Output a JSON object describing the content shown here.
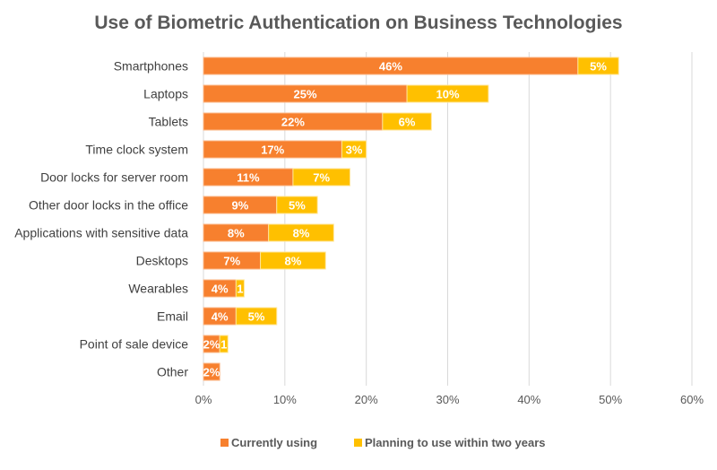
{
  "chart_data": {
    "type": "bar",
    "orientation": "horizontal",
    "stacked": true,
    "title": "Use of Biometric Authentication on Business Technologies",
    "categories": [
      "Smartphones",
      "Laptops",
      "Tablets",
      "Time clock system",
      "Door locks for server room",
      "Other door locks in the office",
      "Applications with sensitive data",
      "Desktops",
      "Wearables",
      "Email",
      "Point of sale device",
      "Other"
    ],
    "series": [
      {
        "name": "Currently using",
        "color": "#F7802E",
        "values": [
          46,
          25,
          22,
          17,
          11,
          9,
          8,
          7,
          4,
          4,
          2,
          2
        ],
        "labels": [
          "46%",
          "25%",
          "22%",
          "17%",
          "11%",
          "9%",
          "8%",
          "7%",
          "4%",
          "4%",
          "2%",
          "2%"
        ]
      },
      {
        "name": "Planning to use within two years",
        "color": "#FFC000",
        "values": [
          5,
          10,
          6,
          3,
          7,
          5,
          8,
          8,
          1,
          5,
          1,
          0
        ],
        "labels": [
          "5%",
          "10%",
          "6%",
          "3%",
          "7%",
          "5%",
          "8%",
          "8%",
          "1",
          "5%",
          "1",
          ""
        ]
      }
    ],
    "xlim": [
      0,
      60
    ],
    "xticks": [
      "0%",
      "10%",
      "20%",
      "30%",
      "40%",
      "50%",
      "60%"
    ],
    "grid": true,
    "legend": "bottom"
  }
}
